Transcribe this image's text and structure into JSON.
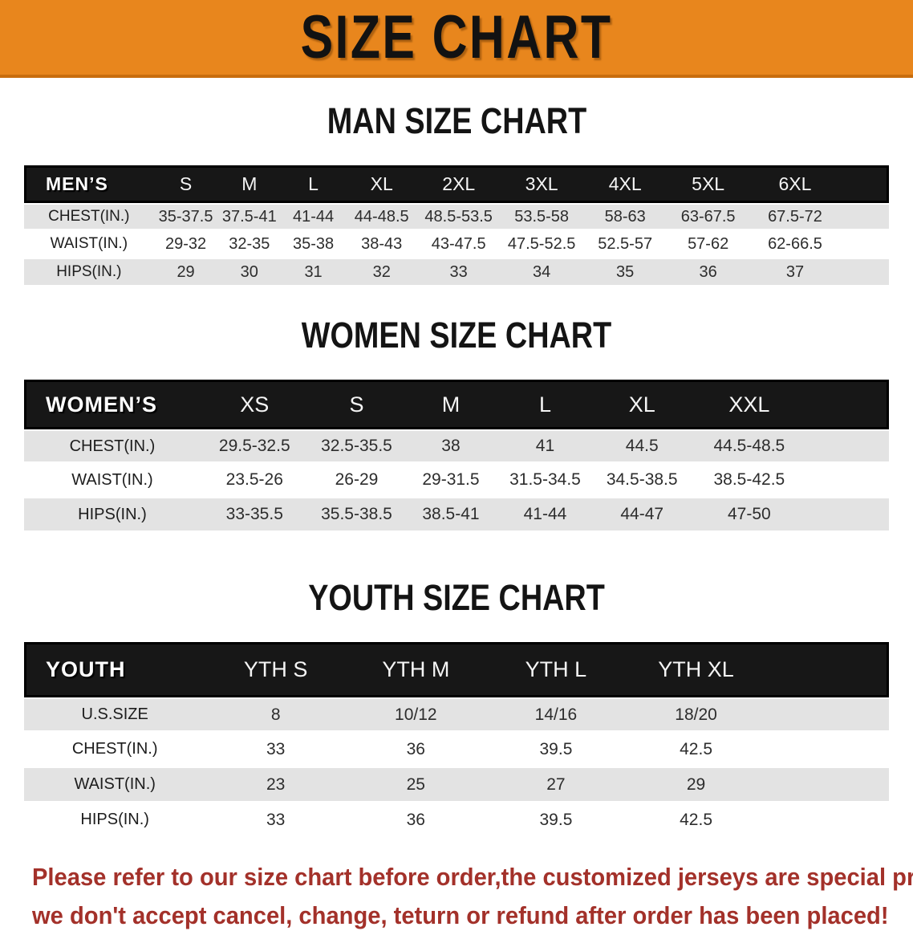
{
  "banner": {
    "title": "SIZE CHART",
    "bg_color": "#E8861D",
    "text_color": "#121212"
  },
  "sections": [
    {
      "id": "mens",
      "title": "MAN SIZE CHART",
      "header_label": "MEN’S",
      "columns": [
        "S",
        "M",
        "L",
        "XL",
        "2XL",
        "3XL",
        "4XL",
        "5XL",
        "6XL"
      ],
      "rows": [
        {
          "label": "CHEST(IN.)",
          "values": [
            "35-37.5",
            "37.5-41",
            "41-44",
            "44-48.5",
            "48.5-53.5",
            "53.5-58",
            "58-63",
            "63-67.5",
            "67.5-72"
          ]
        },
        {
          "label": "WAIST(IN.)",
          "values": [
            "29-32",
            "32-35",
            "35-38",
            "38-43",
            "43-47.5",
            "47.5-52.5",
            "52.5-57",
            "57-62",
            "62-66.5"
          ]
        },
        {
          "label": "HIPS(IN.)",
          "values": [
            "29",
            "30",
            "31",
            "32",
            "33",
            "34",
            "35",
            "36",
            "37"
          ]
        }
      ]
    },
    {
      "id": "womens",
      "title": "WOMEN SIZE CHART",
      "header_label": "WOMEN’S",
      "columns": [
        "XS",
        "S",
        "M",
        "L",
        "XL",
        "XXL"
      ],
      "rows": [
        {
          "label": "CHEST(IN.)",
          "values": [
            "29.5-32.5",
            "32.5-35.5",
            "38",
            "41",
            "44.5",
            "44.5-48.5"
          ]
        },
        {
          "label": "WAIST(IN.)",
          "values": [
            "23.5-26",
            "26-29",
            "29-31.5",
            "31.5-34.5",
            "34.5-38.5",
            "38.5-42.5"
          ]
        },
        {
          "label": "HIPS(IN.)",
          "values": [
            "33-35.5",
            "35.5-38.5",
            "38.5-41",
            "41-44",
            "44-47",
            "47-50"
          ]
        }
      ]
    },
    {
      "id": "youth",
      "title": "YOUTH SIZE CHART",
      "header_label": "YOUTH",
      "columns": [
        "YTH S",
        "YTH M",
        "YTH L",
        "YTH XL"
      ],
      "rows": [
        {
          "label": "U.S.SIZE",
          "values": [
            "8",
            "10/12",
            "14/16",
            "18/20"
          ]
        },
        {
          "label": "CHEST(IN.)",
          "values": [
            "33",
            "36",
            "39.5",
            "42.5"
          ]
        },
        {
          "label": "WAIST(IN.)",
          "values": [
            "23",
            "25",
            "27",
            "29"
          ]
        },
        {
          "label": "HIPS(IN.)",
          "values": [
            "33",
            "36",
            "39.5",
            "42.5"
          ]
        }
      ]
    }
  ],
  "table_style": {
    "header_bg": "#171717",
    "header_text": "#F5F5F5",
    "stripe_gray": "#E3E3E3",
    "stripe_white": "#FFFFFF"
  },
  "disclaimer": {
    "line1": "Please refer to our size chart before order,the customized jerseys are special products,",
    "line2": "we don't accept cancel, change, teturn or refund after order has been placed!",
    "text_color": "#A3312A"
  }
}
